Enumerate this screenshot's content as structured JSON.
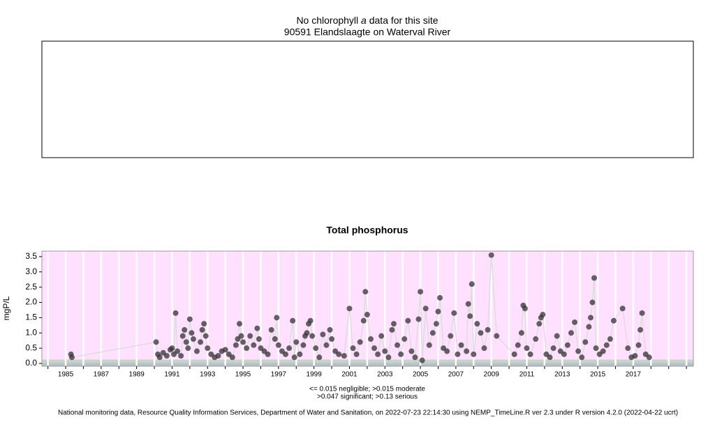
{
  "panels": {
    "chlorophyll": {
      "title_parts": [
        "No chlorophyll",
        "a",
        "data for this site"
      ],
      "subtitle": "90591 Elandslaagte on Waterval River"
    },
    "footer": "National monitoring data, Resource Quality Information Services, Department of Water and Sanitation, on 2022-07-23 22:14:30 using NEMP_TimeLine.R ver 2.3 under R version 4.2.0 (2022-04-22 ucrt)"
  },
  "chart_data": {
    "type": "scatter",
    "title": "Total phosphorus",
    "y_label": "mgP/L",
    "legend_lines": [
      "<= 0.015 negligible; >0.015 moderate",
      ">0.047 significant; >0.13 serious"
    ],
    "xlim": [
      1983.66,
      2020.39
    ],
    "ylim": [
      -0.09,
      3.68
    ],
    "xticks": [
      1985,
      1987,
      1989,
      1991,
      1993,
      1995,
      1997,
      1999,
      2001,
      2003,
      2005,
      2007,
      2009,
      2011,
      2013,
      2015,
      2017
    ],
    "xminorticks": [
      1984,
      1986,
      1988,
      1990,
      1992,
      1994,
      1996,
      1998,
      2000,
      2002,
      2004,
      2006,
      2008,
      2010,
      2012,
      2014,
      2016,
      2018,
      2019,
      2020
    ],
    "yticks": [
      {
        "value": 0,
        "label": "0.0"
      },
      0.5,
      {
        "value": 1,
        "label": "1.0"
      },
      1.5,
      {
        "value": 2,
        "label": "2.0"
      },
      2.5,
      {
        "value": 3,
        "label": "3.0"
      },
      3.5
    ],
    "band_limits": [
      0.015,
      0.047,
      0.13
    ],
    "band_colors": [
      "#b4c2cc",
      "#c4cec4",
      "#c8d4c8",
      "#ffe0ff"
    ],
    "grid": true,
    "color": "#333333",
    "line_color": "#dddddd",
    "x": [
      1985.3,
      1985.35,
      1990.1,
      1990.2,
      1990.3,
      1990.5,
      1990.7,
      1990.9,
      1991.0,
      1991.1,
      1991.2,
      1991.3,
      1991.5,
      1991.6,
      1991.7,
      1991.8,
      1991.9,
      1992.0,
      1992.1,
      1992.2,
      1992.4,
      1992.6,
      1992.7,
      1992.8,
      1992.9,
      1993.0,
      1993.2,
      1993.4,
      1993.6,
      1993.8,
      1994.0,
      1994.2,
      1994.4,
      1994.6,
      1994.7,
      1994.8,
      1994.9,
      1995.0,
      1995.2,
      1995.4,
      1995.6,
      1995.8,
      1995.9,
      1996.0,
      1996.2,
      1996.4,
      1996.6,
      1996.8,
      1996.9,
      1997.0,
      1997.2,
      1997.4,
      1997.6,
      1997.8,
      1997.9,
      1998.0,
      1998.2,
      1998.4,
      1998.5,
      1998.6,
      1998.7,
      1998.8,
      1998.9,
      1999.1,
      1999.3,
      1999.5,
      1999.7,
      1999.9,
      2000.0,
      2000.2,
      2000.4,
      2000.7,
      2001.0,
      2001.2,
      2001.4,
      2001.6,
      2001.8,
      2001.9,
      2002.0,
      2002.2,
      2002.4,
      2002.6,
      2002.8,
      2003.0,
      2003.2,
      2003.4,
      2003.5,
      2003.7,
      2003.9,
      2004.1,
      2004.3,
      2004.5,
      2004.7,
      2004.9,
      2005.0,
      2005.1,
      2005.3,
      2005.5,
      2005.7,
      2005.9,
      2006.0,
      2006.1,
      2006.3,
      2006.5,
      2006.7,
      2006.9,
      2007.1,
      2007.3,
      2007.6,
      2007.7,
      2007.8,
      2007.9,
      2008.0,
      2008.2,
      2008.4,
      2008.6,
      2008.8,
      2009.0,
      2009.3,
      2010.3,
      2010.5,
      2010.7,
      2010.8,
      2010.9,
      2011.0,
      2011.2,
      2011.5,
      2011.7,
      2011.8,
      2011.9,
      2012.1,
      2012.3,
      2012.5,
      2012.7,
      2012.9,
      2013.1,
      2013.3,
      2013.5,
      2013.7,
      2013.9,
      2014.1,
      2014.3,
      2014.5,
      2014.6,
      2014.7,
      2014.8,
      2014.9,
      2015.1,
      2015.3,
      2015.5,
      2015.7,
      2015.9,
      2016.4,
      2016.7,
      2016.9,
      2017.1,
      2017.3,
      2017.4,
      2017.5,
      2017.7,
      2017.9
    ],
    "values": [
      0.3,
      0.2,
      0.7,
      0.3,
      0.2,
      0.35,
      0.25,
      0.45,
      0.5,
      0.3,
      1.65,
      0.4,
      0.25,
      0.9,
      1.1,
      0.7,
      0.5,
      1.45,
      1.0,
      0.8,
      0.4,
      0.7,
      1.1,
      1.3,
      0.9,
      0.5,
      0.3,
      0.2,
      0.25,
      0.4,
      0.45,
      0.3,
      0.2,
      0.6,
      0.8,
      1.3,
      0.9,
      0.7,
      0.5,
      0.9,
      0.6,
      1.15,
      0.8,
      0.5,
      0.4,
      0.3,
      1.1,
      0.8,
      1.5,
      0.6,
      0.4,
      0.3,
      0.5,
      1.4,
      0.2,
      0.7,
      0.3,
      0.6,
      0.9,
      1.0,
      1.3,
      1.4,
      0.9,
      0.5,
      0.2,
      0.95,
      0.6,
      1.1,
      0.8,
      0.4,
      0.3,
      0.25,
      1.8,
      0.5,
      0.3,
      0.7,
      1.4,
      2.35,
      1.6,
      0.8,
      0.5,
      0.3,
      0.9,
      0.4,
      0.2,
      1.1,
      1.3,
      0.6,
      0.3,
      0.8,
      1.4,
      0.4,
      0.2,
      1.45,
      2.35,
      0.1,
      1.8,
      0.6,
      1.0,
      1.3,
      1.7,
      2.15,
      0.5,
      0.4,
      0.9,
      1.65,
      0.3,
      0.6,
      0.4,
      1.95,
      1.55,
      2.6,
      0.3,
      1.3,
      1.0,
      0.5,
      1.1,
      3.55,
      0.9,
      0.3,
      0.6,
      1.0,
      1.9,
      1.8,
      0.5,
      0.3,
      0.8,
      1.3,
      1.5,
      1.6,
      0.3,
      0.2,
      0.5,
      0.9,
      0.4,
      0.3,
      0.6,
      1.0,
      1.35,
      0.4,
      0.2,
      0.7,
      1.2,
      1.5,
      2.0,
      2.8,
      0.5,
      0.3,
      0.4,
      0.6,
      0.8,
      1.4,
      1.8,
      0.5,
      0.2,
      0.25,
      0.6,
      1.1,
      1.65,
      0.3,
      0.2
    ]
  }
}
